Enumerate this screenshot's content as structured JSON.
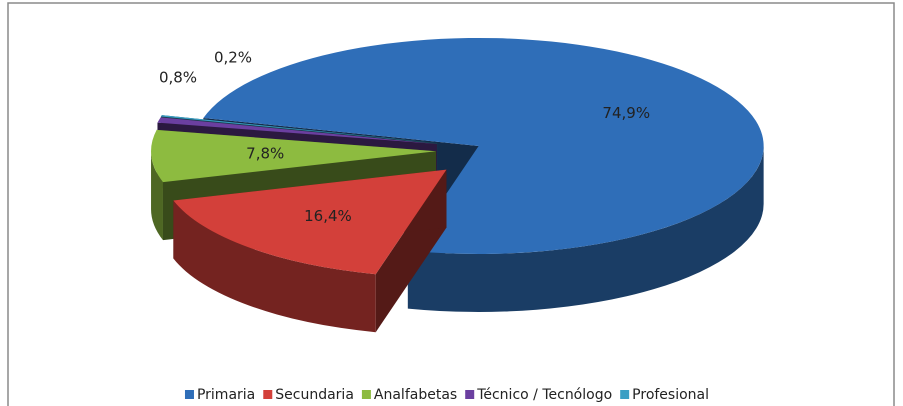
{
  "chart_data": {
    "type": "pie3d",
    "categories": [
      "Primaria",
      "Secundaria",
      "Analfabetas",
      "Técnico / Tecnólogo",
      "Profesional"
    ],
    "values": [
      74.9,
      16.4,
      7.8,
      0.8,
      0.2
    ],
    "value_labels": [
      "74,9%",
      "16,4%",
      "7,8%",
      "0,8%",
      "0,2%"
    ],
    "colors": [
      "#2f6eb8",
      "#d3403a",
      "#8dbb40",
      "#6b3fa0",
      "#3b9fc4"
    ],
    "legend": "bottom"
  }
}
